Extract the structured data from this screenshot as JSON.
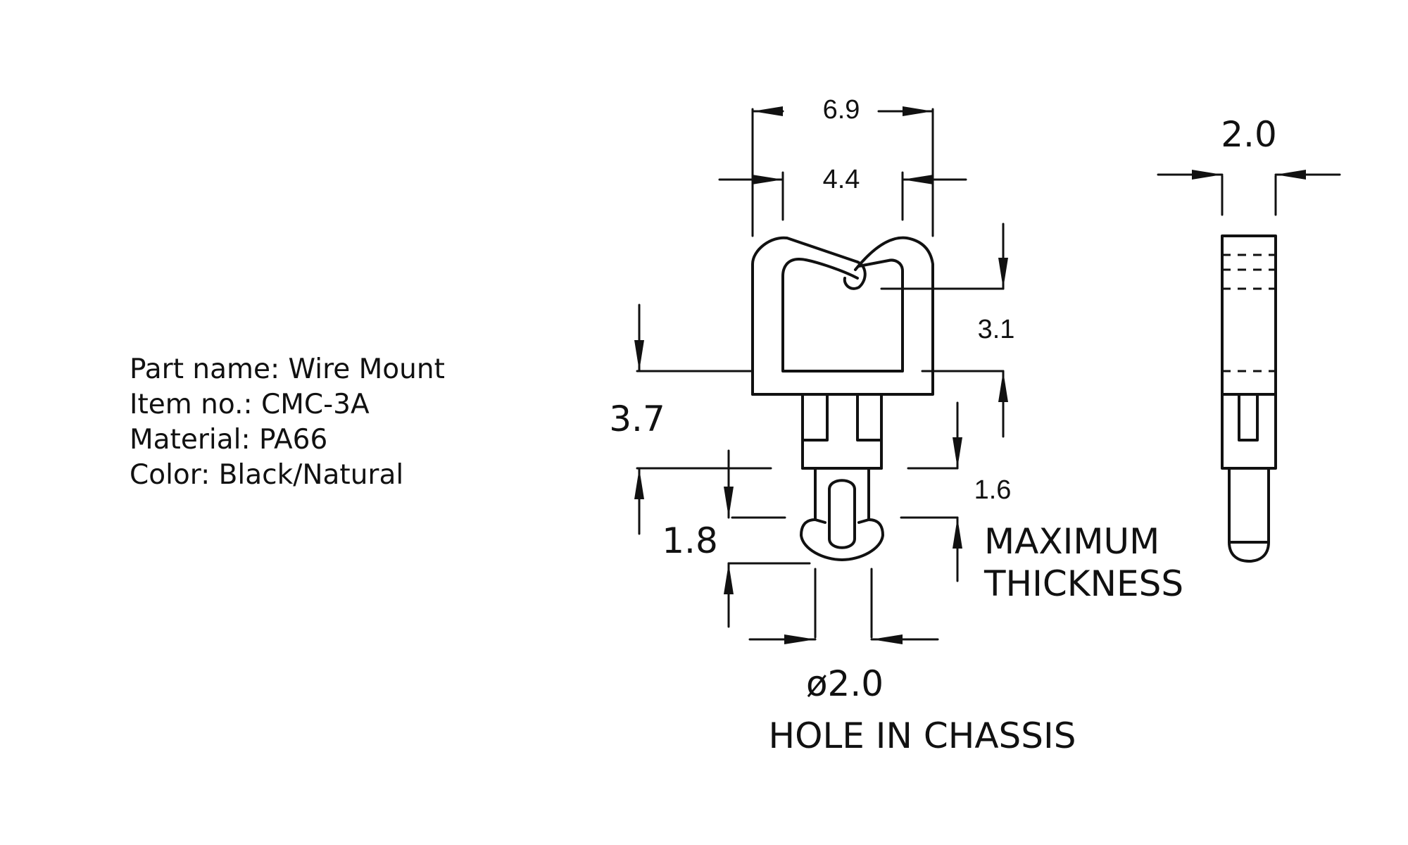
{
  "part_info": {
    "part_name": "Part name: Wire Mount",
    "item_no": "Item no.: CMC-3A",
    "material": "Material: PA66",
    "color": "Color: Black/Natural"
  },
  "dimensions": {
    "overall_width": "6.9",
    "opening_width": "4.4",
    "side_thickness": "2.0",
    "clip_height": "3.1",
    "total_height": "3.7",
    "leg_height": "1.8",
    "max_thickness_value": "1.6",
    "hole_diameter": "ø2.0"
  },
  "notes": {
    "max_thickness_line1": "MAXIMUM",
    "max_thickness_line2": "THICKNESS",
    "hole_note": "HOLE IN CHASSIS"
  },
  "colors": {
    "line": "#111111",
    "background": "#ffffff"
  }
}
